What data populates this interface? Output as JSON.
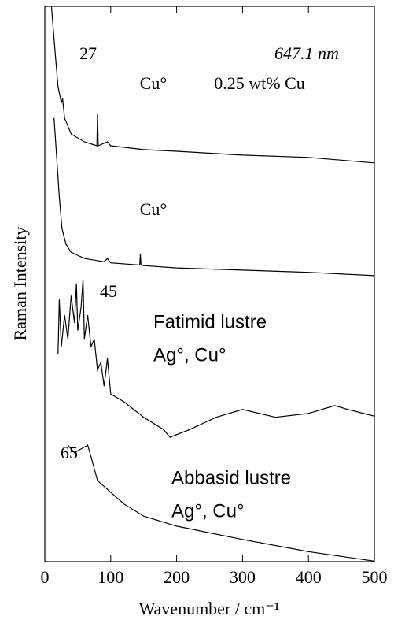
{
  "chart_data": {
    "type": "line",
    "x_label": "Wavenumber / cm⁻¹",
    "y_label": "Raman Intensity",
    "xlim": [
      0,
      500
    ],
    "xticks": [
      0,
      100,
      200,
      300,
      400,
      500
    ],
    "ylim": [
      0,
      100
    ],
    "annotations": [
      "27",
      "647.1 nm",
      "Cu°",
      "0.25 wt% Cu",
      "Cu°",
      "45",
      "Fatimid lustre",
      "Ag°, Cu°",
      "65",
      "Abbasid lustre",
      "Ag°, Cu°"
    ],
    "series": [
      {
        "color": "#000000",
        "x": [
          10,
          15,
          20,
          25,
          27,
          30,
          40,
          60,
          79,
          80,
          81,
          95,
          100,
          150,
          200,
          300,
          400,
          500
        ],
        "values": [
          100,
          92.6,
          85.5,
          82.7,
          83.4,
          79.9,
          77,
          75.6,
          74.9,
          80.6,
          74.9,
          75.6,
          74.9,
          74.2,
          73.9,
          73.2,
          72.8,
          71.8
        ]
      },
      {
        "color": "#000000",
        "x": [
          14,
          18,
          22,
          26,
          32,
          40,
          60,
          90,
          95,
          100,
          144,
          145,
          146,
          150,
          200,
          300,
          400,
          500
        ],
        "values": [
          79.9,
          72.8,
          65.7,
          60,
          57.2,
          55.7,
          54.6,
          54,
          54.6,
          53.8,
          53.4,
          55.4,
          53.4,
          53.3,
          52.9,
          52.5,
          52.1,
          51.5
        ]
      },
      {
        "color": "#000000",
        "x": [
          20,
          22,
          25,
          30,
          35,
          40,
          45,
          48,
          50,
          55,
          58,
          60,
          65,
          70,
          75,
          80,
          85,
          90,
          95,
          100,
          120,
          150,
          180,
          190,
          220,
          260,
          300,
          350,
          400,
          440,
          460,
          500
        ],
        "values": [
          37.3,
          47.2,
          38.7,
          44.4,
          40.1,
          47.9,
          43,
          50.1,
          41.6,
          45.8,
          50.8,
          40.1,
          44.4,
          38.7,
          40.1,
          34.5,
          35.9,
          31.6,
          36.6,
          30.2,
          28.8,
          26,
          23.8,
          22.4,
          23.8,
          26,
          27.4,
          26,
          26.7,
          28.1,
          27.4,
          26.2
        ]
      },
      {
        "color": "#000000",
        "x": [
          35,
          45,
          55,
          65,
          70,
          80,
          100,
          120,
          150,
          200,
          300,
          400,
          500
        ],
        "values": [
          21,
          19.6,
          20.3,
          21,
          18.9,
          14.6,
          12.5,
          10.4,
          8.2,
          6.4,
          4,
          1.8,
          0.1
        ]
      }
    ]
  }
}
